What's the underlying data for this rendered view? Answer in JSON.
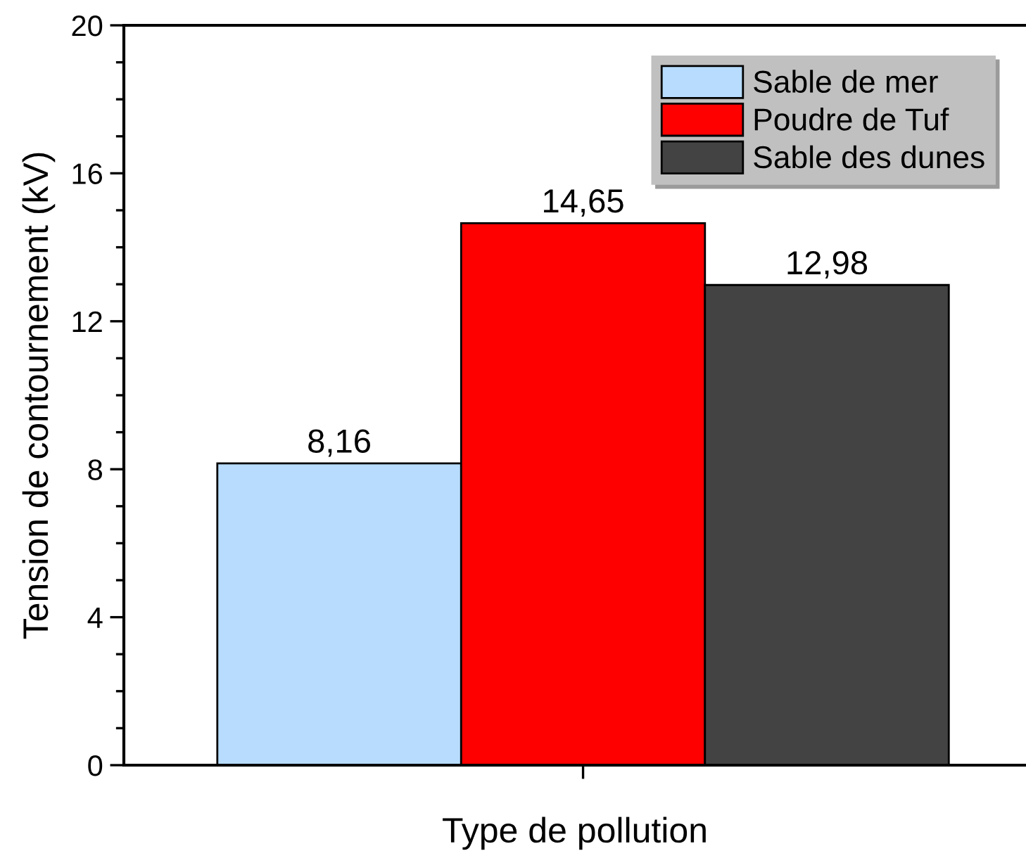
{
  "chart_data": {
    "type": "bar",
    "xlabel": "Type de pollution",
    "ylabel": "Tension de contournement (kV)",
    "categories": [
      null
    ],
    "series": [
      {
        "name": "Sable de mer",
        "color": "#b7dcfe",
        "values": [
          8.16
        ],
        "value_labels": [
          "8,16"
        ]
      },
      {
        "name": "Poudre de Tuf",
        "color": "#ff0000",
        "values": [
          14.65
        ],
        "value_labels": [
          "14,65"
        ]
      },
      {
        "name": "Sable des dunes",
        "color": "#434343",
        "values": [
          12.98
        ],
        "value_labels": [
          "12,98"
        ]
      }
    ],
    "ylim": [
      0,
      20
    ],
    "yticks": [
      0,
      4,
      8,
      12,
      16,
      20
    ],
    "grid": false,
    "legend": "top right"
  }
}
